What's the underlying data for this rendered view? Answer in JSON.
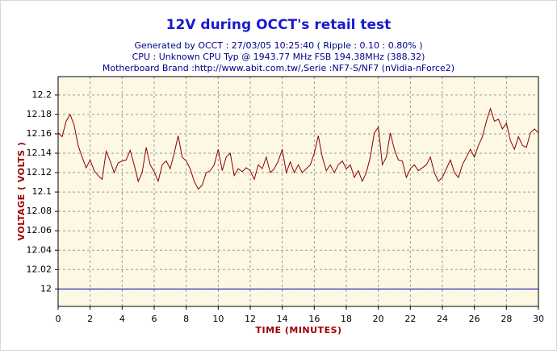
{
  "chart_data": {
    "type": "line",
    "title": "12V during OCCT's retail test",
    "subtitle": [
      "Generated by OCCT : 27/03/05 10:25:40 ( Ripple : 0.10 : 0.80% )",
      "CPU : Unknown CPU Typ @ 1943.77 MHz FSB 194.38MHz (388.32)",
      "Motherboard Brand :http://www.abit.com.tw/,Serie :NF7-S/NF7 (nVidia-nForce2)"
    ],
    "xlabel": "TIME (MINUTES)",
    "ylabel": "VOLTAGE ( VOLTS )",
    "color": "#8b0000",
    "reference_line": 12,
    "reference_color": "#0000cc",
    "grid": true,
    "xlim": [
      0,
      30
    ],
    "ylim": [
      11.982,
      12.219
    ],
    "xticks": [
      0,
      2,
      4,
      6,
      8,
      10,
      12,
      14,
      16,
      18,
      20,
      22,
      24,
      26,
      28,
      30
    ],
    "yticks": [
      12,
      12.02,
      12.04,
      12.06,
      12.08,
      12.1,
      12.12,
      12.14,
      12.16,
      12.18,
      12.2
    ],
    "x": [
      0,
      0.25,
      0.5,
      0.75,
      1,
      1.25,
      1.5,
      1.75,
      2,
      2.25,
      2.5,
      2.75,
      3,
      3.25,
      3.5,
      3.75,
      4,
      4.25,
      4.5,
      4.75,
      5,
      5.25,
      5.5,
      5.75,
      6,
      6.25,
      6.5,
      6.75,
      7,
      7.25,
      7.5,
      7.75,
      8,
      8.25,
      8.5,
      8.75,
      9,
      9.25,
      9.5,
      9.75,
      10,
      10.25,
      10.5,
      10.75,
      11,
      11.25,
      11.5,
      11.75,
      12,
      12.25,
      12.5,
      12.75,
      13,
      13.25,
      13.5,
      13.75,
      14,
      14.25,
      14.5,
      14.75,
      15,
      15.25,
      15.5,
      15.75,
      16,
      16.25,
      16.5,
      16.75,
      17,
      17.25,
      17.5,
      17.75,
      18,
      18.25,
      18.5,
      18.75,
      19,
      19.25,
      19.5,
      19.75,
      20,
      20.25,
      20.5,
      20.75,
      21,
      21.25,
      21.5,
      21.75,
      22,
      22.25,
      22.5,
      22.75,
      23,
      23.25,
      23.5,
      23.75,
      24,
      24.25,
      24.5,
      24.75,
      25,
      25.25,
      25.5,
      25.75,
      26,
      26.25,
      26.5,
      26.75,
      27,
      27.25,
      27.5,
      27.75,
      28,
      28.25,
      28.5,
      28.75,
      29,
      29.25,
      29.5,
      29.75,
      30
    ],
    "values": [
      12.161,
      12.157,
      12.173,
      12.18,
      12.169,
      12.148,
      12.136,
      12.125,
      12.133,
      12.122,
      12.117,
      12.113,
      12.142,
      12.132,
      12.12,
      12.13,
      12.132,
      12.133,
      12.143,
      12.128,
      12.111,
      12.12,
      12.146,
      12.128,
      12.121,
      12.111,
      12.128,
      12.132,
      12.124,
      12.14,
      12.158,
      12.136,
      12.132,
      12.124,
      12.111,
      12.103,
      12.107,
      12.12,
      12.122,
      12.128,
      12.144,
      12.122,
      12.136,
      12.14,
      12.117,
      12.124,
      12.121,
      12.125,
      12.122,
      12.113,
      12.128,
      12.124,
      12.136,
      12.12,
      12.124,
      12.132,
      12.144,
      12.12,
      12.131,
      12.12,
      12.128,
      12.12,
      12.124,
      12.128,
      12.14,
      12.158,
      12.136,
      12.122,
      12.128,
      12.12,
      12.128,
      12.132,
      12.124,
      12.128,
      12.115,
      12.122,
      12.111,
      12.12,
      12.136,
      12.161,
      12.167,
      12.128,
      12.136,
      12.161,
      12.144,
      12.133,
      12.132,
      12.115,
      12.124,
      12.128,
      12.122,
      12.125,
      12.128,
      12.136,
      12.12,
      12.111,
      12.115,
      12.124,
      12.133,
      12.12,
      12.115,
      12.128,
      12.136,
      12.144,
      12.136,
      12.148,
      12.157,
      12.173,
      12.186,
      12.173,
      12.175,
      12.165,
      12.171,
      12.153,
      12.144,
      12.157,
      12.148,
      12.146,
      12.161,
      12.165,
      12.161
    ]
  }
}
